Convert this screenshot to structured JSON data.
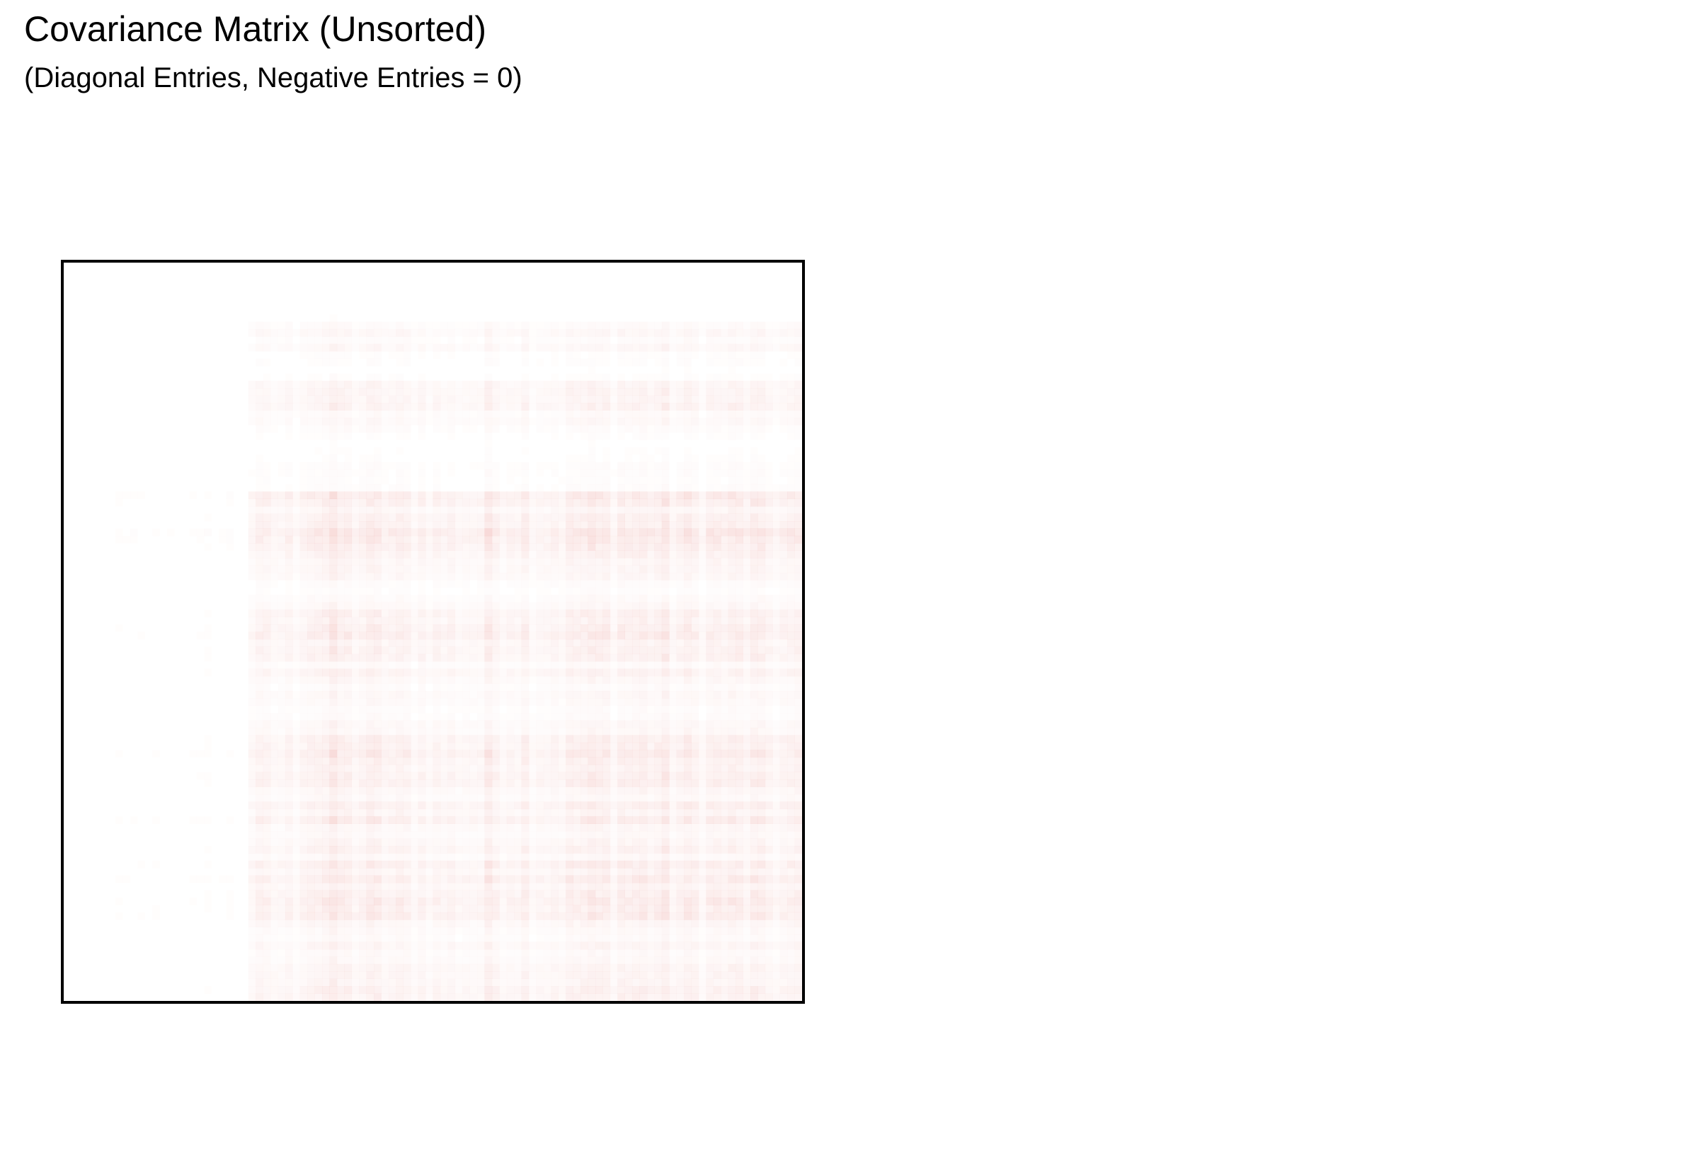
{
  "chart_data": {
    "type": "heatmap",
    "title": "Covariance Matrix (Unsorted)",
    "subtitle": "(Diagonal Entries, Negative Entries = 0)",
    "xlabel": "",
    "ylabel": "",
    "axes_visible": false,
    "legend": "none",
    "grid": false,
    "colors": {
      "low": "#ffffff",
      "high": "#d73027",
      "frame": "#000000"
    },
    "column_block_intensity": [
      0.05,
      0.08,
      0.08,
      0.1,
      0.55,
      1.0,
      0.8,
      0.7,
      0.6,
      0.85,
      0.75,
      0.9,
      0.95,
      0.8,
      0.85,
      0.7
    ],
    "row_block_intensity": [
      0.0,
      0.05,
      0.3,
      0.15,
      0.4,
      0.25,
      0.1,
      0.15,
      0.7,
      1.0,
      0.55,
      0.25,
      0.6,
      0.7,
      0.45,
      0.35,
      0.6,
      0.8,
      0.55,
      0.6,
      0.45,
      0.7,
      0.75,
      0.4,
      0.55,
      0.6
    ],
    "max_opacity": 0.28
  }
}
